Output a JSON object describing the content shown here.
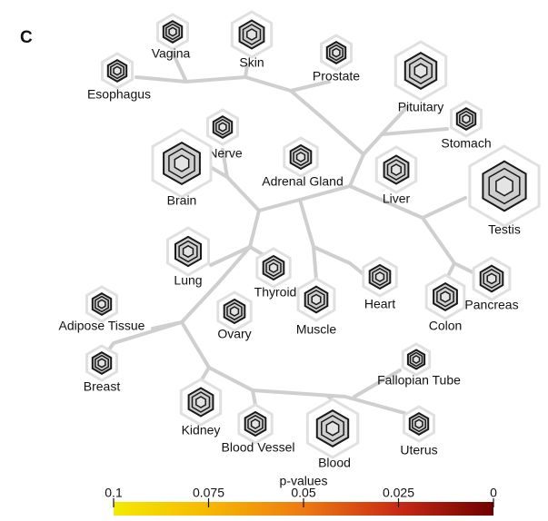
{
  "panel_label": "C",
  "nodes": [
    {
      "label": "Vagina"
    },
    {
      "label": "Skin"
    },
    {
      "label": "Prostate"
    },
    {
      "label": "Esophagus"
    },
    {
      "label": "Pituitary"
    },
    {
      "label": "Stomach"
    },
    {
      "label": "Nerve"
    },
    {
      "label": "Brain"
    },
    {
      "label": "Adrenal Gland"
    },
    {
      "label": "Liver"
    },
    {
      "label": "Testis"
    },
    {
      "label": "Lung"
    },
    {
      "label": "Thyroid"
    },
    {
      "label": "Heart"
    },
    {
      "label": "Pancreas"
    },
    {
      "label": "Colon"
    },
    {
      "label": "Muscle"
    },
    {
      "label": "Ovary"
    },
    {
      "label": "Adipose Tissue"
    },
    {
      "label": "Breast"
    },
    {
      "label": "Fallopian Tube"
    },
    {
      "label": "Kidney"
    },
    {
      "label": "Blood Vessel"
    },
    {
      "label": "Blood"
    },
    {
      "label": "Uterus"
    }
  ],
  "colorbar": {
    "title": "p-values",
    "lim": [
      0.1,
      0
    ],
    "ticks": [
      0.1,
      0.075,
      0.05,
      0.025,
      0
    ],
    "colors": [
      "#f3ea00",
      "#f6b800",
      "#ee7a12",
      "#c82a14",
      "#6e0000"
    ]
  }
}
